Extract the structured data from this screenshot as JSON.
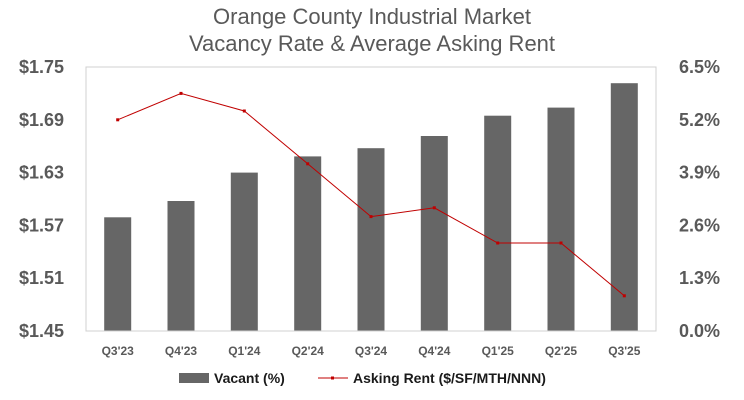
{
  "chart_data": {
    "type": "bar+line",
    "title": [
      "Orange County Industrial Market",
      "Vacancy Rate & Average Asking Rent"
    ],
    "categories": [
      "Q3'23",
      "Q4'23",
      "Q1'24",
      "Q2'24",
      "Q3'24",
      "Q4'24",
      "Q1'25",
      "Q2'25",
      "Q3'25"
    ],
    "series": [
      {
        "name": "Vacant (%)",
        "type": "bar",
        "axis": "right",
        "color": "#666666",
        "values": [
          2.8,
          3.2,
          3.9,
          4.3,
          4.5,
          4.8,
          5.3,
          5.5,
          6.1
        ]
      },
      {
        "name": "Asking Rent ($/SF/MTH/NNN)",
        "type": "line",
        "axis": "left",
        "color": "#c00000",
        "values": [
          1.69,
          1.72,
          1.7,
          1.64,
          1.58,
          1.59,
          1.55,
          1.55,
          1.49
        ]
      }
    ],
    "y_left": {
      "min": 1.45,
      "max": 1.75,
      "ticks": [
        1.75,
        1.69,
        1.63,
        1.57,
        1.51,
        1.45
      ],
      "tick_labels": [
        "$1.75",
        "$1.69",
        "$1.63",
        "$1.57",
        "$1.51",
        "$1.45"
      ]
    },
    "y_right": {
      "min": 0,
      "max": 6.5,
      "ticks": [
        6.5,
        5.2,
        3.9,
        2.6,
        1.3,
        0
      ],
      "tick_labels": [
        "6.5%",
        "5.2%",
        "3.9%",
        "2.6%",
        "1.3%",
        "0.0%"
      ]
    },
    "grid": false,
    "legend_position": "bottom"
  }
}
